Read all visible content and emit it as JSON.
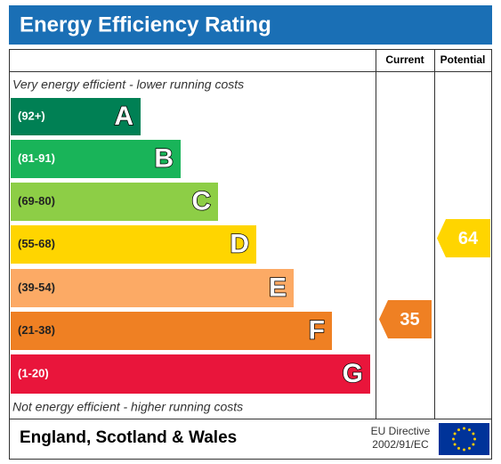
{
  "header": {
    "title": "Energy Efficiency Rating"
  },
  "columns": {
    "current": "Current",
    "potential": "Potential"
  },
  "top_note": "Very energy efficient - lower running costs",
  "bottom_note": "Not energy efficient - higher running costs",
  "bands": [
    {
      "range": "(92+)",
      "letter": "A",
      "color": "#008054",
      "text_color": "#ffffff"
    },
    {
      "range": "(81-91)",
      "letter": "B",
      "color": "#19b459",
      "text_color": "#ffffff"
    },
    {
      "range": "(69-80)",
      "letter": "C",
      "color": "#8dce46",
      "text_color": "#222222"
    },
    {
      "range": "(55-68)",
      "letter": "D",
      "color": "#ffd500",
      "text_color": "#222222"
    },
    {
      "range": "(39-54)",
      "letter": "E",
      "color": "#fcaa65",
      "text_color": "#222222"
    },
    {
      "range": "(21-38)",
      "letter": "F",
      "color": "#ef8023",
      "text_color": "#222222"
    },
    {
      "range": "(1-20)",
      "letter": "G",
      "color": "#e9153b",
      "text_color": "#ffffff"
    }
  ],
  "current": {
    "value": 35,
    "color": "#ef8023"
  },
  "potential": {
    "value": 64,
    "color": "#ffd500"
  },
  "footer": {
    "region": "England, Scotland & Wales",
    "directive": [
      "EU Directive",
      "2002/91/EC"
    ]
  }
}
